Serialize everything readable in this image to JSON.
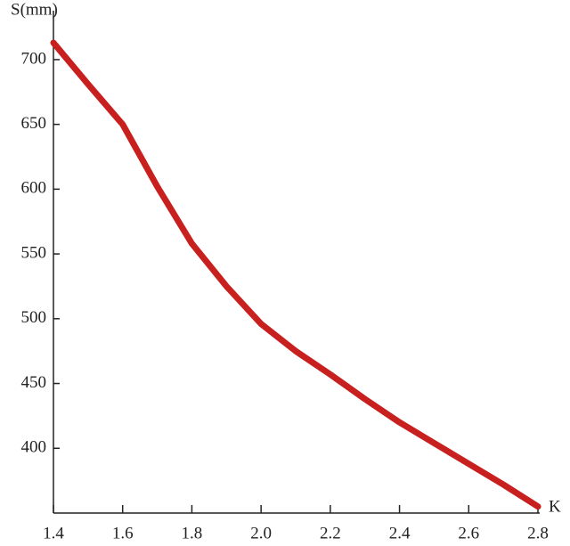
{
  "chart_data": {
    "type": "line",
    "y_label": "S(mm)",
    "x_label": "K",
    "x": [
      1.4,
      1.5,
      1.6,
      1.7,
      1.8,
      1.9,
      2.0,
      2.1,
      2.2,
      2.3,
      2.4,
      2.5,
      2.6,
      2.7,
      2.8
    ],
    "series": [
      {
        "color": "#c8201e",
        "values": [
          713,
          681,
          650,
          602,
          558,
          525,
          496,
          475,
          457,
          438,
          420,
          404,
          388,
          372,
          355
        ]
      }
    ],
    "xlim": [
      1.4,
      2.8
    ],
    "xticks": [
      {
        "value": 1.4,
        "label": "1.4"
      },
      {
        "value": 1.6,
        "label": "1.6"
      },
      {
        "value": 1.8,
        "label": "1.8"
      },
      {
        "value": 2.0,
        "label": "2.0"
      },
      {
        "value": 2.2,
        "label": "2.2"
      },
      {
        "value": 2.4,
        "label": "2.4"
      },
      {
        "value": 2.6,
        "label": "2.6"
      },
      {
        "value": 2.8,
        "label": "2.8"
      }
    ],
    "ylim": [
      350,
      735
    ],
    "yticks": [
      400,
      450,
      500,
      550,
      600,
      650,
      700
    ],
    "grid": false
  }
}
